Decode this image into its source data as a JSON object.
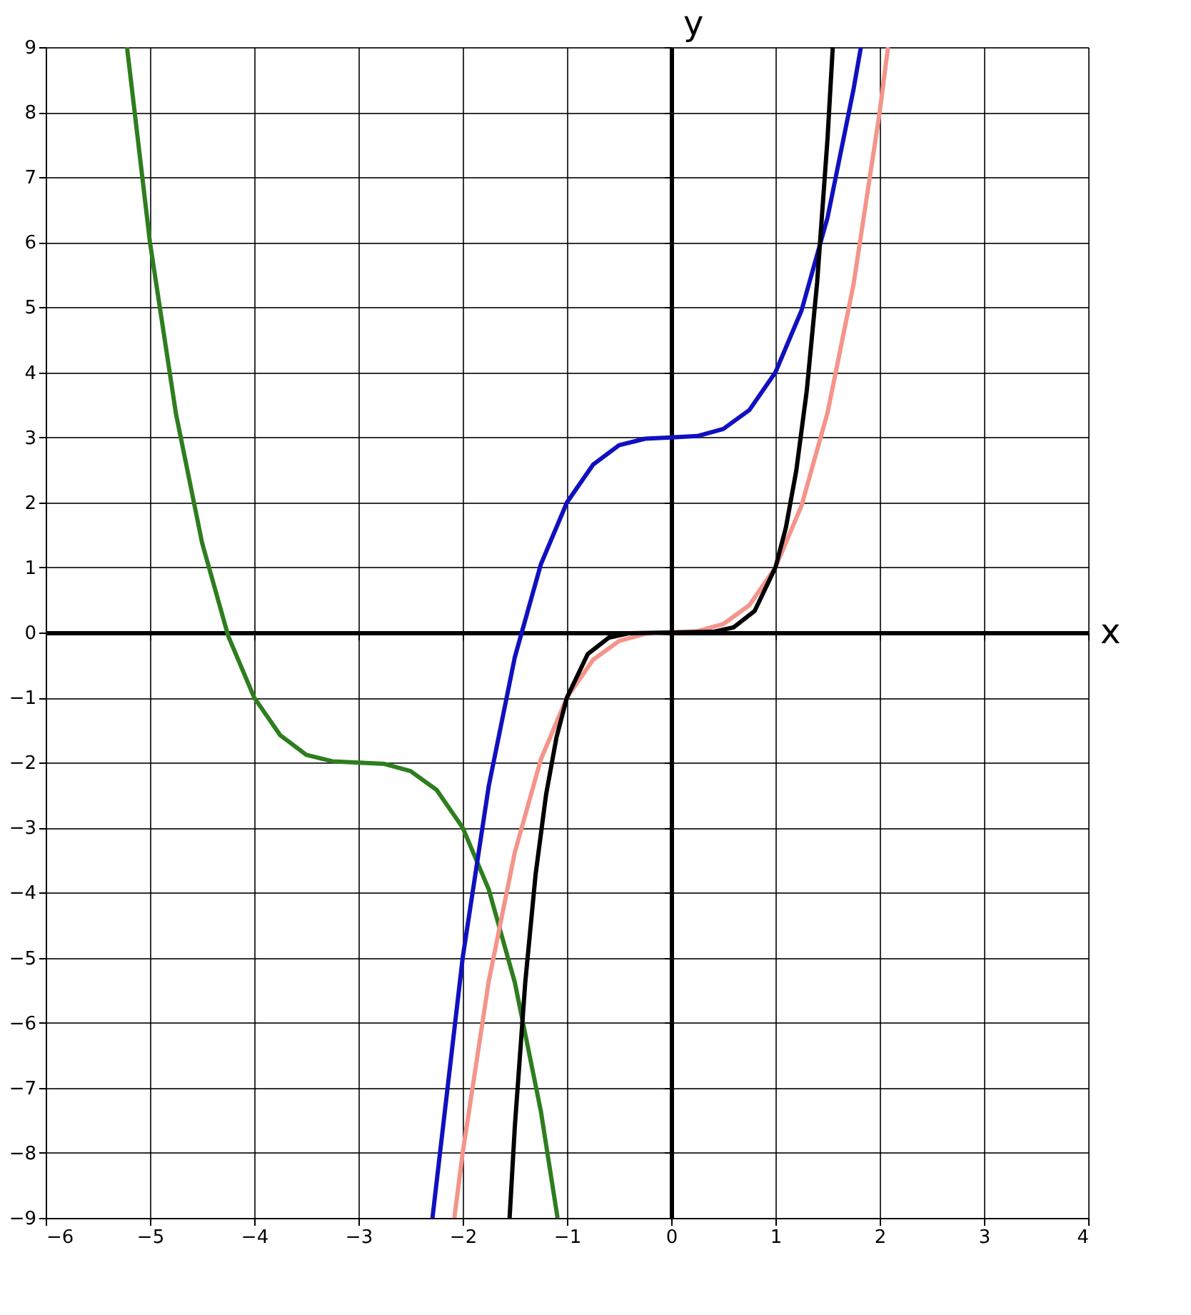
{
  "chart_data": {
    "type": "line",
    "xlabel": "x",
    "ylabel": "y",
    "xlim": [
      -6,
      4
    ],
    "ylim": [
      -9,
      9
    ],
    "xticks": [
      -6,
      -5,
      -4,
      -3,
      -2,
      -1,
      0,
      1,
      2,
      3,
      4
    ],
    "yticks": [
      -9,
      -8,
      -7,
      -6,
      -5,
      -4,
      -3,
      -2,
      -1,
      0,
      1,
      2,
      3,
      4,
      5,
      6,
      7,
      8,
      9
    ],
    "grid": true,
    "marker": "none",
    "line_style": "solid",
    "series": [
      {
        "color": "#2e7d1e",
        "x": [
          -5.22,
          -5,
          -4.75,
          -4.5,
          -4.25,
          -4,
          -3.75,
          -3.5,
          -3.25,
          -3,
          -2.75,
          -2.5,
          -2.25,
          -2,
          -1.75,
          -1.5,
          -1.25,
          -1.09
        ],
        "values": [
          9,
          6,
          3.36,
          1.38,
          -0.05,
          -1,
          -1.58,
          -1.88,
          -1.98,
          -2,
          -2.02,
          -2.13,
          -2.42,
          -3,
          -3.95,
          -5.38,
          -7.36,
          -9
        ]
      },
      {
        "color": "#f4948a",
        "x": [
          -2.08,
          -2,
          -1.75,
          -1.5,
          -1.25,
          -1,
          -0.75,
          -0.5,
          -0.25,
          0,
          0.25,
          0.5,
          0.75,
          1,
          1.25,
          1.5,
          1.75,
          2,
          2.08
        ],
        "values": [
          -9,
          -8,
          -5.36,
          -3.38,
          -1.95,
          -1,
          -0.42,
          -0.13,
          -0.02,
          0,
          0.02,
          0.13,
          0.42,
          1,
          1.95,
          3.38,
          5.36,
          8,
          9
        ]
      },
      {
        "color": "#1010c0",
        "x": [
          -2.29,
          -2,
          -1.75,
          -1.5,
          -1.25,
          -1,
          -0.75,
          -0.5,
          -0.25,
          0,
          0.25,
          0.5,
          0.75,
          1,
          1.25,
          1.5,
          1.75,
          1.82
        ],
        "values": [
          -9,
          -5,
          -2.36,
          -0.38,
          1.05,
          2,
          2.58,
          2.88,
          2.98,
          3,
          3.02,
          3.13,
          3.42,
          4,
          4.95,
          6.38,
          8.36,
          9
        ]
      },
      {
        "color": "#000000",
        "x": [
          -1.55,
          -1.5,
          -1.4,
          -1.3,
          -1.2,
          -1.1,
          -1,
          -0.8,
          -0.6,
          -0.4,
          0,
          0.4,
          0.6,
          0.8,
          1,
          1.1,
          1.2,
          1.3,
          1.4,
          1.5,
          1.55
        ],
        "values": [
          -9,
          -7.6,
          -5.38,
          -3.71,
          -2.49,
          -1.61,
          -1,
          -0.33,
          -0.08,
          -0.01,
          0,
          0.01,
          0.08,
          0.33,
          1,
          1.61,
          2.49,
          3.71,
          5.38,
          7.6,
          9
        ]
      }
    ]
  }
}
